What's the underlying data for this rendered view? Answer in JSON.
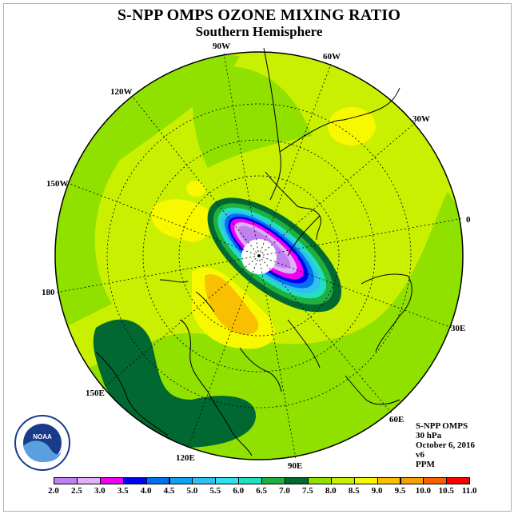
{
  "title": "S-NPP OMPS OZONE MIXING RATIO",
  "subtitle": "Southern Hemisphere",
  "longitude_labels": [
    "90W",
    "60W",
    "30W",
    "0",
    "30E",
    "60E",
    "90E",
    "120E",
    "150E",
    "180",
    "150W",
    "120W"
  ],
  "info": {
    "line1": "S-NPP OMPS",
    "line2": "30 hPa",
    "line3": "October 6, 2016",
    "line4": "v6",
    "line5": "PPM"
  },
  "logo_text": "NOAA",
  "colorbar": {
    "labels": [
      "2.0",
      "2.5",
      "3.0",
      "3.5",
      "4.0",
      "4.5",
      "5.0",
      "5.5",
      "6.0",
      "6.5",
      "7.0",
      "7.5",
      "8.0",
      "8.5",
      "9.0",
      "9.5",
      "10.0",
      "10.5",
      "11.0"
    ],
    "colors": [
      "#c080f0",
      "#e0b0f8",
      "#f000f0",
      "#0000f0",
      "#0070f0",
      "#10a0f0",
      "#30c0f0",
      "#30e0f0",
      "#20e0c0",
      "#20b040",
      "#006830",
      "#90e000",
      "#c8f000",
      "#f8f800",
      "#f8c000",
      "#f8a000",
      "#f86000",
      "#f80000",
      "#a05040"
    ]
  }
}
